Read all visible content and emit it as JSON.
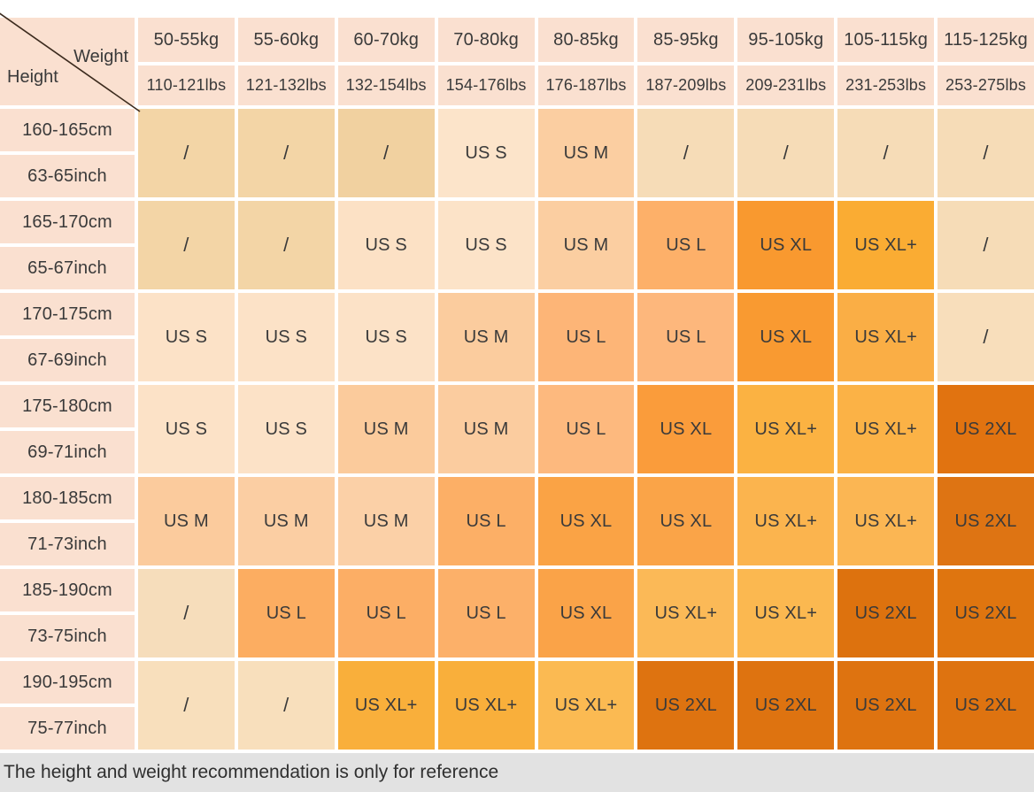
{
  "palette": {
    "page_bg": "#FFFFFF",
    "header_bg": "#FAE0D0",
    "grid_gap": "#FFFFFF",
    "text": "#3A3A3A",
    "diagonal_line": "#3C2B1E",
    "note_bg": "#E2E2E2",
    "note_text": "#2F2F2F"
  },
  "corner": {
    "weight_label": "Weight",
    "height_label": "Height"
  },
  "columns": [
    {
      "kg": "50-55kg",
      "lbs": "110-121lbs"
    },
    {
      "kg": "55-60kg",
      "lbs": "121-132lbs"
    },
    {
      "kg": "60-70kg",
      "lbs": "132-154lbs"
    },
    {
      "kg": "70-80kg",
      "lbs": "154-176lbs"
    },
    {
      "kg": "80-85kg",
      "lbs": "176-187lbs"
    },
    {
      "kg": "85-95kg",
      "lbs": "187-209lbs"
    },
    {
      "kg": "95-105kg",
      "lbs": "209-231lbs"
    },
    {
      "kg": "105-115kg",
      "lbs": "231-253lbs"
    },
    {
      "kg": "115-125kg",
      "lbs": "253-275lbs"
    }
  ],
  "rows": [
    {
      "cm": "160-165cm",
      "inch": "63-65inch",
      "cells": [
        {
          "label": "/",
          "bg": "#F3D5A6"
        },
        {
          "label": "/",
          "bg": "#F3D5A6"
        },
        {
          "label": "/",
          "bg": "#F1D1A0"
        },
        {
          "label": "US S",
          "bg": "#FCE4CA"
        },
        {
          "label": "US M",
          "bg": "#FBCEA1"
        },
        {
          "label": "/",
          "bg": "#F6DCB7"
        },
        {
          "label": "/",
          "bg": "#F6DCB7"
        },
        {
          "label": "/",
          "bg": "#F6DCB7"
        },
        {
          "label": "/",
          "bg": "#F6DCB7"
        }
      ]
    },
    {
      "cm": "165-170cm",
      "inch": "65-67inch",
      "cells": [
        {
          "label": "/",
          "bg": "#F3D5A6"
        },
        {
          "label": "/",
          "bg": "#F3D5A6"
        },
        {
          "label": "US S",
          "bg": "#FCE1C5"
        },
        {
          "label": "US S",
          "bg": "#FCE3C8"
        },
        {
          "label": "US M",
          "bg": "#FBCEA1"
        },
        {
          "label": "US L",
          "bg": "#FDB069"
        },
        {
          "label": "US XL",
          "bg": "#F9992F"
        },
        {
          "label": "US XL+",
          "bg": "#FAAC33"
        },
        {
          "label": "/",
          "bg": "#F6DCB7"
        }
      ]
    },
    {
      "cm": "170-175cm",
      "inch": "67-69inch",
      "cells": [
        {
          "label": "US S",
          "bg": "#FCE2C7"
        },
        {
          "label": "US S",
          "bg": "#FCE2C7"
        },
        {
          "label": "US S",
          "bg": "#FCE2C7"
        },
        {
          "label": "US M",
          "bg": "#FBCC9E"
        },
        {
          "label": "US L",
          "bg": "#FDB577"
        },
        {
          "label": "US L",
          "bg": "#FDB77C"
        },
        {
          "label": "US XL",
          "bg": "#F99A31"
        },
        {
          "label": "US XL+",
          "bg": "#FAAE45"
        },
        {
          "label": "/",
          "bg": "#F8DEBB"
        }
      ]
    },
    {
      "cm": "175-180cm",
      "inch": "69-71inch",
      "cells": [
        {
          "label": "US S",
          "bg": "#FCE2C7"
        },
        {
          "label": "US S",
          "bg": "#FCE2C7"
        },
        {
          "label": "US M",
          "bg": "#FBCB9C"
        },
        {
          "label": "US M",
          "bg": "#FBCC9F"
        },
        {
          "label": "US L",
          "bg": "#FDB97E"
        },
        {
          "label": "US XL",
          "bg": "#FA9C3B"
        },
        {
          "label": "US XL+",
          "bg": "#FBB242"
        },
        {
          "label": "US XL+",
          "bg": "#FBB246"
        },
        {
          "label": "US 2XL",
          "bg": "#E17310"
        }
      ]
    },
    {
      "cm": "180-185cm",
      "inch": "71-73inch",
      "cells": [
        {
          "label": "US M",
          "bg": "#FBCB9D"
        },
        {
          "label": "US M",
          "bg": "#FBCEA3"
        },
        {
          "label": "US M",
          "bg": "#FBD0A7"
        },
        {
          "label": "US L",
          "bg": "#FCAF66"
        },
        {
          "label": "US XL",
          "bg": "#FAA345"
        },
        {
          "label": "US XL",
          "bg": "#FAA448"
        },
        {
          "label": "US XL+",
          "bg": "#FBB44E"
        },
        {
          "label": "US XL+",
          "bg": "#FBB653"
        },
        {
          "label": "US 2XL",
          "bg": "#DE7413"
        }
      ]
    },
    {
      "cm": "185-190cm",
      "inch": "73-75inch",
      "cells": [
        {
          "label": "/",
          "bg": "#F6DDBB"
        },
        {
          "label": "US L",
          "bg": "#FCAD61"
        },
        {
          "label": "US L",
          "bg": "#FCAE65"
        },
        {
          "label": "US L",
          "bg": "#FCB069"
        },
        {
          "label": "US XL",
          "bg": "#FAA348"
        },
        {
          "label": "US XL+",
          "bg": "#FBB957"
        },
        {
          "label": "US XL+",
          "bg": "#FBB850"
        },
        {
          "label": "US 2XL",
          "bg": "#DD720E"
        },
        {
          "label": "US 2XL",
          "bg": "#DF750F"
        }
      ]
    },
    {
      "cm": "190-195cm",
      "inch": "75-77inch",
      "cells": [
        {
          "label": "/",
          "bg": "#F8DFBC"
        },
        {
          "label": "/",
          "bg": "#F8DFBC"
        },
        {
          "label": "US XL+",
          "bg": "#F9AF3B"
        },
        {
          "label": "US XL+",
          "bg": "#F9AF3B"
        },
        {
          "label": "US XL+",
          "bg": "#FBBA52"
        },
        {
          "label": "US 2XL",
          "bg": "#DE7310"
        },
        {
          "label": "US 2XL",
          "bg": "#DE7310"
        },
        {
          "label": "US 2XL",
          "bg": "#DE7310"
        },
        {
          "label": "US 2XL",
          "bg": "#DE7310"
        }
      ]
    }
  ],
  "note": "The height and weight recommendation is only for reference",
  "chart_data": {
    "type": "table",
    "x_axis": {
      "label": "Weight",
      "units": [
        "kg",
        "lbs"
      ]
    },
    "y_axis": {
      "label": "Height",
      "units": [
        "cm",
        "inch"
      ]
    },
    "weight_kg": [
      "50-55kg",
      "55-60kg",
      "60-70kg",
      "70-80kg",
      "80-85kg",
      "85-95kg",
      "95-105kg",
      "105-115kg",
      "115-125kg"
    ],
    "weight_lbs": [
      "110-121lbs",
      "121-132lbs",
      "132-154lbs",
      "154-176lbs",
      "176-187lbs",
      "187-209lbs",
      "209-231lbs",
      "231-253lbs",
      "253-275lbs"
    ],
    "height_cm": [
      "160-165cm",
      "165-170cm",
      "170-175cm",
      "175-180cm",
      "180-185cm",
      "185-190cm",
      "190-195cm"
    ],
    "height_inch": [
      "63-65inch",
      "65-67inch",
      "67-69inch",
      "69-71inch",
      "71-73inch",
      "73-75inch",
      "75-77inch"
    ],
    "sizes": [
      [
        "/",
        "/",
        "/",
        "US S",
        "US M",
        "/",
        "/",
        "/",
        "/"
      ],
      [
        "/",
        "/",
        "US S",
        "US S",
        "US M",
        "US L",
        "US XL",
        "US XL+",
        "/"
      ],
      [
        "US S",
        "US S",
        "US S",
        "US M",
        "US L",
        "US L",
        "US XL",
        "US XL+",
        "/"
      ],
      [
        "US S",
        "US S",
        "US M",
        "US M",
        "US L",
        "US XL",
        "US XL+",
        "US XL+",
        "US 2XL"
      ],
      [
        "US M",
        "US M",
        "US M",
        "US L",
        "US XL",
        "US XL",
        "US XL+",
        "US XL+",
        "US 2XL"
      ],
      [
        "/",
        "US L",
        "US L",
        "US L",
        "US XL",
        "US XL+",
        "US XL+",
        "US 2XL",
        "US 2XL"
      ],
      [
        "/",
        "/",
        "US XL+",
        "US XL+",
        "US XL+",
        "US 2XL",
        "US 2XL",
        "US 2XL",
        "US 2XL"
      ]
    ],
    "note": "The height and weight recommendation is only for reference"
  }
}
